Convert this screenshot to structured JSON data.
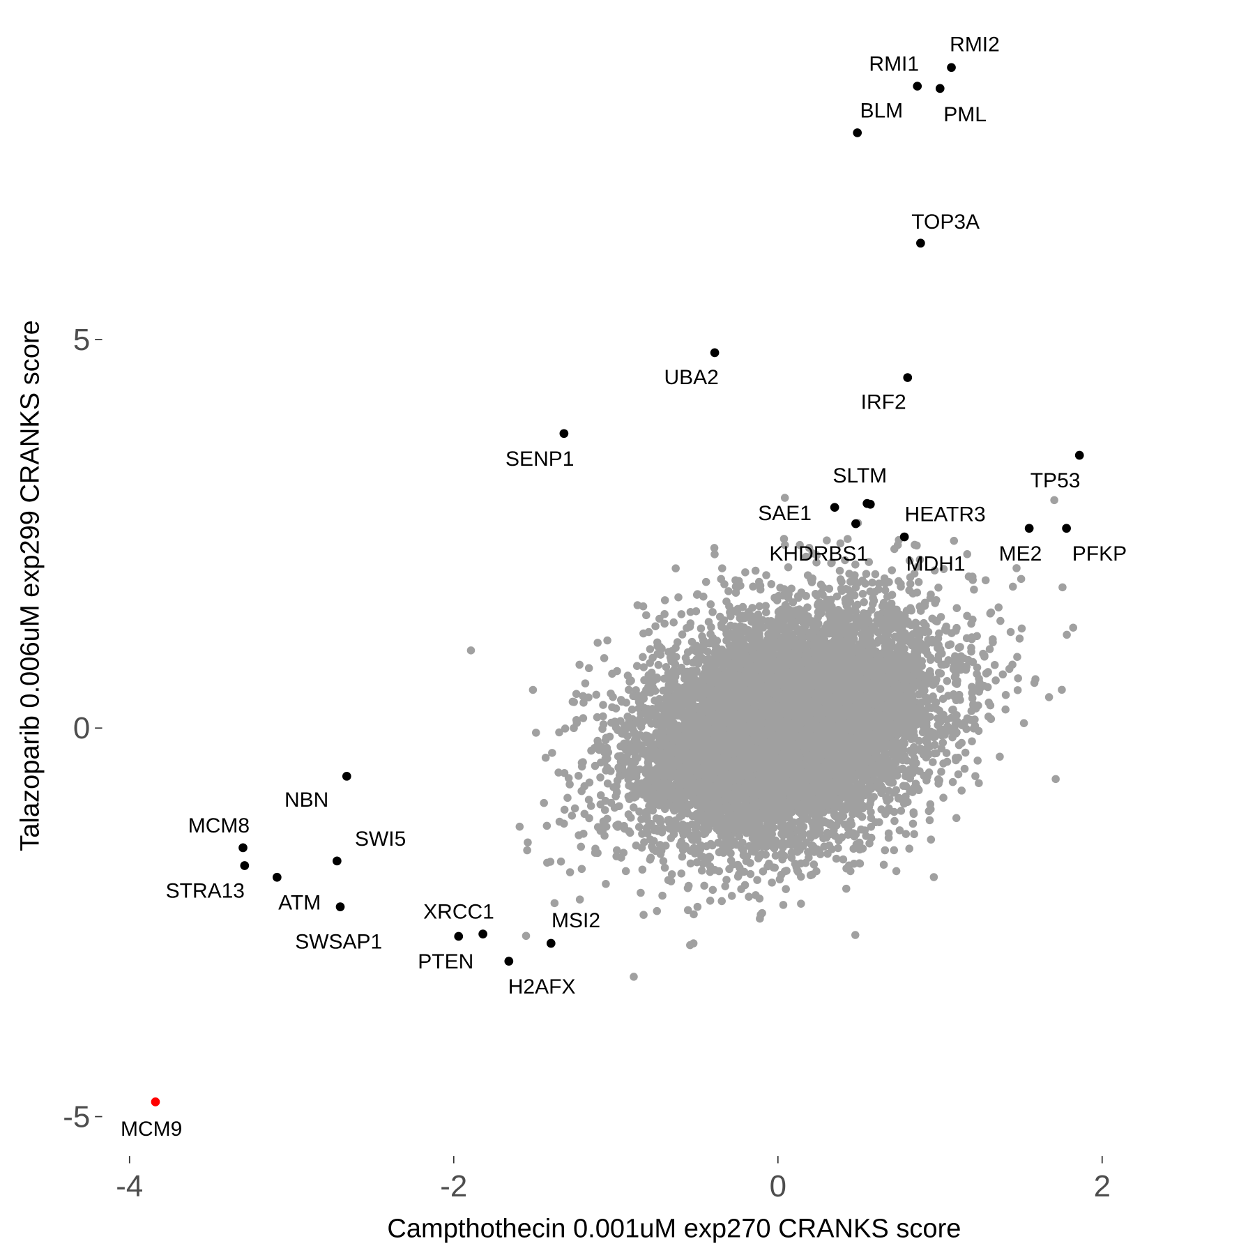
{
  "chart_data": {
    "type": "scatter",
    "title": "",
    "xlabel": "Campthothecin 0.001uM exp270 CRANKS score",
    "ylabel": "Talazoparib 0.006uM exp299 CRANKS score",
    "xlim": [
      -4.16,
      2.88
    ],
    "ylim": [
      -5.48,
      9.17
    ],
    "x_ticks": [
      {
        "value": -4,
        "label": "-4"
      },
      {
        "value": -2,
        "label": "-2"
      },
      {
        "value": 0,
        "label": "0"
      },
      {
        "value": 2,
        "label": "2"
      }
    ],
    "y_ticks": [
      {
        "value": -5,
        "label": "-5"
      },
      {
        "value": 0,
        "label": "0"
      },
      {
        "value": 5,
        "label": "5"
      }
    ],
    "grid": false,
    "legend": "none",
    "colors": {
      "background_points": "#a0a0a0",
      "highlight": "#000000",
      "focus": "#ff0000",
      "tick_text": "#4d4d4d"
    },
    "background_points": {
      "description_of_cloud": "all other genes",
      "count": 9000,
      "mean": [
        0.05,
        0.05
      ],
      "sd": [
        0.45,
        0.72
      ],
      "correlation": 0.3
    },
    "highlights": [
      {
        "gene": "RMI2",
        "x": 1.07,
        "y": 8.5,
        "color": "#000000"
      },
      {
        "gene": "RMI1",
        "x": 0.86,
        "y": 8.26,
        "color": "#000000"
      },
      {
        "gene": "PML",
        "x": 1.0,
        "y": 8.23,
        "color": "#000000"
      },
      {
        "gene": "BLM",
        "x": 0.49,
        "y": 7.66,
        "color": "#000000"
      },
      {
        "gene": "TOP3A",
        "x": 0.88,
        "y": 6.24,
        "color": "#000000"
      },
      {
        "gene": "UBA2",
        "x": -0.39,
        "y": 4.83,
        "color": "#000000"
      },
      {
        "gene": "IRF2",
        "x": 0.8,
        "y": 4.51,
        "color": "#000000"
      },
      {
        "gene": "SENP1",
        "x": -1.32,
        "y": 3.79,
        "color": "#000000"
      },
      {
        "gene": "TP53",
        "x": 1.86,
        "y": 3.51,
        "color": "#000000"
      },
      {
        "gene": "SLTM",
        "x": 0.55,
        "y": 2.89,
        "color": "#000000"
      },
      {
        "gene": "SAE1",
        "x": 0.35,
        "y": 2.84,
        "color": "#000000"
      },
      {
        "gene": "KHDRBS1",
        "x": 0.48,
        "y": 2.63,
        "color": "#000000"
      },
      {
        "gene": "HEATR3",
        "x": 0.57,
        "y": 2.88,
        "color": "#000000"
      },
      {
        "gene": "MDH1",
        "x": 0.78,
        "y": 2.46,
        "color": "#000000"
      },
      {
        "gene": "ME2",
        "x": 1.55,
        "y": 2.57,
        "color": "#000000"
      },
      {
        "gene": "PFKP",
        "x": 1.78,
        "y": 2.57,
        "color": "#000000"
      },
      {
        "gene": "NBN",
        "x": -2.66,
        "y": -0.62,
        "color": "#000000"
      },
      {
        "gene": "MCM8",
        "x": -3.3,
        "y": -1.54,
        "color": "#000000"
      },
      {
        "gene": "STRA13",
        "x": -3.29,
        "y": -1.77,
        "color": "#000000"
      },
      {
        "gene": "ATM",
        "x": -3.09,
        "y": -1.92,
        "color": "#000000"
      },
      {
        "gene": "SWI5",
        "x": -2.72,
        "y": -1.71,
        "color": "#000000"
      },
      {
        "gene": "SWSAP1",
        "x": -2.7,
        "y": -2.3,
        "color": "#000000"
      },
      {
        "gene": "XRCC1",
        "x": -1.82,
        "y": -2.65,
        "color": "#000000"
      },
      {
        "gene": "PTEN",
        "x": -1.97,
        "y": -2.68,
        "color": "#000000"
      },
      {
        "gene": "MSI2",
        "x": -1.4,
        "y": -2.77,
        "color": "#000000"
      },
      {
        "gene": "H2AFX",
        "x": -1.66,
        "y": -3.0,
        "color": "#000000"
      },
      {
        "gene": "MCM9",
        "x": -3.84,
        "y": -4.81,
        "color": "#ff0000"
      }
    ]
  }
}
